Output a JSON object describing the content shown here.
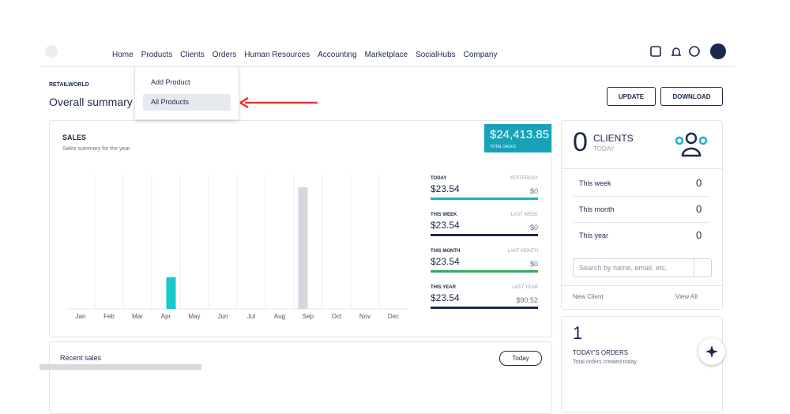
{
  "nav": {
    "items": [
      "Home",
      "Products",
      "Clients",
      "Orders",
      "Human Resources",
      "Accounting",
      "Marketplace",
      "SocialHubs",
      "Company"
    ]
  },
  "dropdown": {
    "items": [
      "Add Product",
      "All Products"
    ]
  },
  "page": {
    "breadcrumb": "RETAILWORLD",
    "title": "Overall summary",
    "buttons": [
      "UPDATE",
      "DOWNLOAD"
    ]
  },
  "sales": {
    "title": "SALES",
    "subtitle": "Sales summary for the year",
    "total": "$24,413.85",
    "total_label": "TOTAL SALES",
    "stats": [
      {
        "label": "TODAY",
        "value": "$23.54",
        "compare_label": "YESTERDAY",
        "compare_value": "$0",
        "color": "#17b3c4"
      },
      {
        "label": "THIS WEEK",
        "value": "$23.54",
        "compare_label": "LAST WEEK",
        "compare_value": "$0",
        "color": "#1b2a4a"
      },
      {
        "label": "THIS MONTH",
        "value": "$23.54",
        "compare_label": "LAST MONTH",
        "compare_value": "$0",
        "color": "#2fae5f"
      },
      {
        "label": "THIS YEAR",
        "value": "$23.54",
        "compare_label": "LAST YEAR",
        "compare_value": "$90.52",
        "color": "#1b2a4a"
      }
    ]
  },
  "chart_data": {
    "type": "bar",
    "categories": [
      "Jan",
      "Feb",
      "Mar",
      "Apr",
      "May",
      "Jun",
      "Jul",
      "Aug",
      "Sep",
      "Oct",
      "Nov",
      "Dec"
    ],
    "series": [
      {
        "color": "#d4d7de",
        "values": [
          0,
          0,
          0,
          0,
          0,
          0,
          0,
          0,
          90.52,
          0,
          0,
          0
        ]
      },
      {
        "color": "#17c9cc",
        "values": [
          0,
          0,
          0,
          23.54,
          0,
          0,
          0,
          0,
          0,
          0,
          0,
          0
        ]
      }
    ],
    "ylim": [
      0,
      100
    ],
    "grid": true
  },
  "clients": {
    "count": "0",
    "label": "CLIENTS",
    "sublabel": "TODAY",
    "rows": [
      {
        "label": "This week",
        "value": "0"
      },
      {
        "label": "This month",
        "value": "0"
      },
      {
        "label": "This year",
        "value": "0"
      }
    ],
    "search_placeholder": "Search by name, email, etc.",
    "new_client": "New Client",
    "view_all": "View All"
  },
  "orders": {
    "count": "1",
    "label": "TODAY'S ORDERS",
    "sublabel": "Total orders created today"
  },
  "recent": {
    "title": "Recent sales",
    "button": "Today"
  }
}
